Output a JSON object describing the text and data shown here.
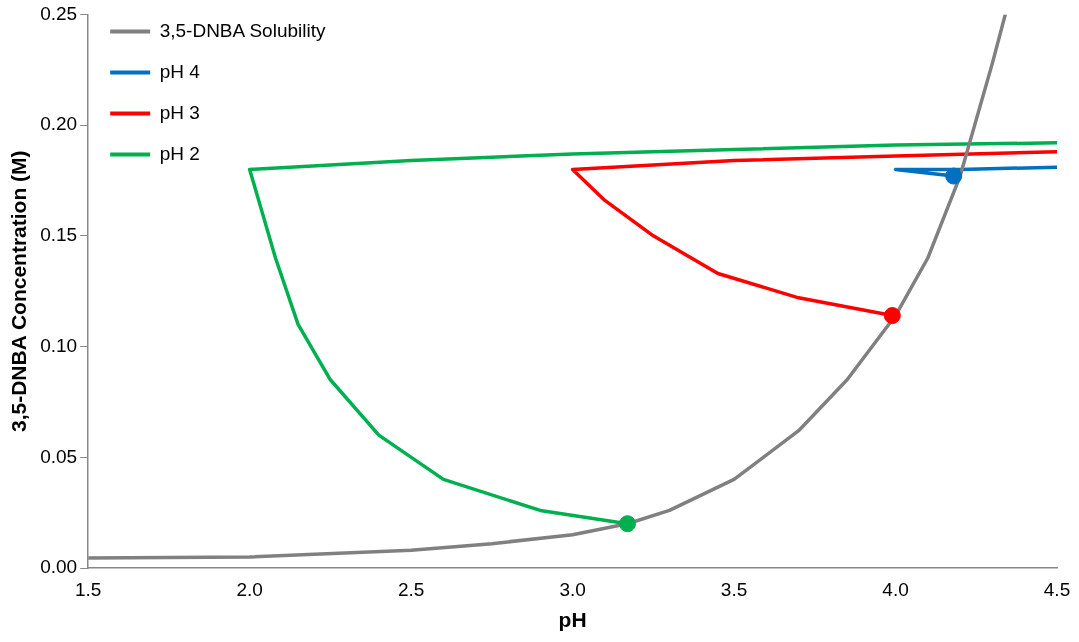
{
  "chart_data": {
    "type": "line",
    "xlabel": "pH",
    "ylabel": "3,5-DNBA Concentration (M)",
    "xlim": [
      1.5,
      4.5
    ],
    "xticks": [
      1.5,
      {
        "value": 2,
        "label": "2.0"
      },
      2.5,
      {
        "value": 3,
        "label": "3.0"
      },
      3.5,
      {
        "value": 4,
        "label": "4.0"
      },
      4.5
    ],
    "ylim": [
      0,
      0.25
    ],
    "yticks": [
      {
        "value": 0,
        "label": "0.00"
      },
      0.05,
      {
        "value": 0.1,
        "label": "0.10"
      },
      0.15,
      {
        "value": 0.2,
        "label": "0.20"
      },
      0.25
    ],
    "grid": false,
    "legend": "top left",
    "marker": "none",
    "series": [
      {
        "name": "3,5-DNBA Solubility",
        "color": "#808080",
        "x": [
          1.5,
          2.0,
          2.5,
          2.75,
          3.0,
          3.17,
          3.3,
          3.5,
          3.7,
          3.85,
          4.0,
          4.1,
          4.2,
          4.3,
          4.34
        ],
        "values": [
          0.0045,
          0.005,
          0.008,
          0.011,
          0.015,
          0.02,
          0.026,
          0.04,
          0.062,
          0.085,
          0.114,
          0.14,
          0.177,
          0.228,
          0.25
        ]
      },
      {
        "name": "pH 4",
        "color": "#0070c0",
        "x": [
          4.18,
          4.0,
          4.2,
          4.5
        ],
        "values": [
          0.177,
          0.18,
          0.18,
          0.181
        ]
      },
      {
        "name": "pH 3",
        "color": "#ff0000",
        "x": [
          3.99,
          3.7,
          3.45,
          3.25,
          3.1,
          3.0,
          3.5,
          4.0,
          4.5
        ],
        "values": [
          0.114,
          0.122,
          0.133,
          0.15,
          0.166,
          0.18,
          0.184,
          0.186,
          0.188
        ]
      },
      {
        "name": "pH 2",
        "color": "#00b050",
        "x": [
          3.17,
          2.9,
          2.6,
          2.4,
          2.25,
          2.15,
          2.08,
          2.03,
          2.0,
          2.5,
          3.0,
          3.5,
          4.0,
          4.5
        ],
        "values": [
          0.02,
          0.026,
          0.04,
          0.06,
          0.085,
          0.11,
          0.14,
          0.165,
          0.18,
          0.184,
          0.187,
          0.189,
          0.191,
          0.192
        ]
      },
      {
        "type": "scatter",
        "marker": "circle",
        "color": "#0070c0",
        "x": [
          4.18
        ],
        "values": [
          0.177
        ]
      },
      {
        "type": "scatter",
        "marker": "circle",
        "color": "#ff0000",
        "x": [
          3.99
        ],
        "values": [
          0.114
        ]
      },
      {
        "type": "scatter",
        "marker": "circle",
        "color": "#00b050",
        "x": [
          3.17
        ],
        "values": [
          0.02
        ]
      }
    ]
  }
}
